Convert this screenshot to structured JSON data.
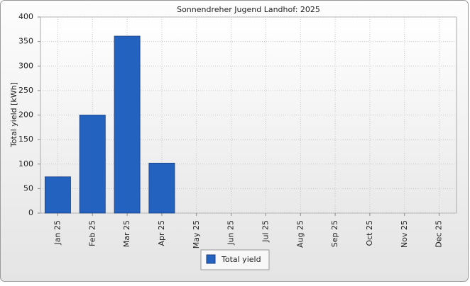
{
  "chart_data": {
    "type": "bar",
    "title": "Sonnendreher Jugend Landhof: 2025",
    "y_label": "Total yield [kWh]",
    "categories": [
      "Jan 25",
      "Feb 25",
      "Mar 25",
      "Apr 25",
      "May 25",
      "Jun 25",
      "Jul 25",
      "Aug 25",
      "Sep 25",
      "Oct 25",
      "Nov 25",
      "Dec 25"
    ],
    "series": [
      {
        "name": "Total yield",
        "color": "#2462c0",
        "values": [
          74,
          200,
          361,
          102,
          null,
          null,
          null,
          null,
          null,
          null,
          null,
          null
        ]
      }
    ],
    "ylim": [
      0,
      400
    ],
    "yticks": [
      0,
      50,
      100,
      150,
      200,
      250,
      300,
      350,
      400
    ],
    "grid": true,
    "legend": "bottom"
  }
}
